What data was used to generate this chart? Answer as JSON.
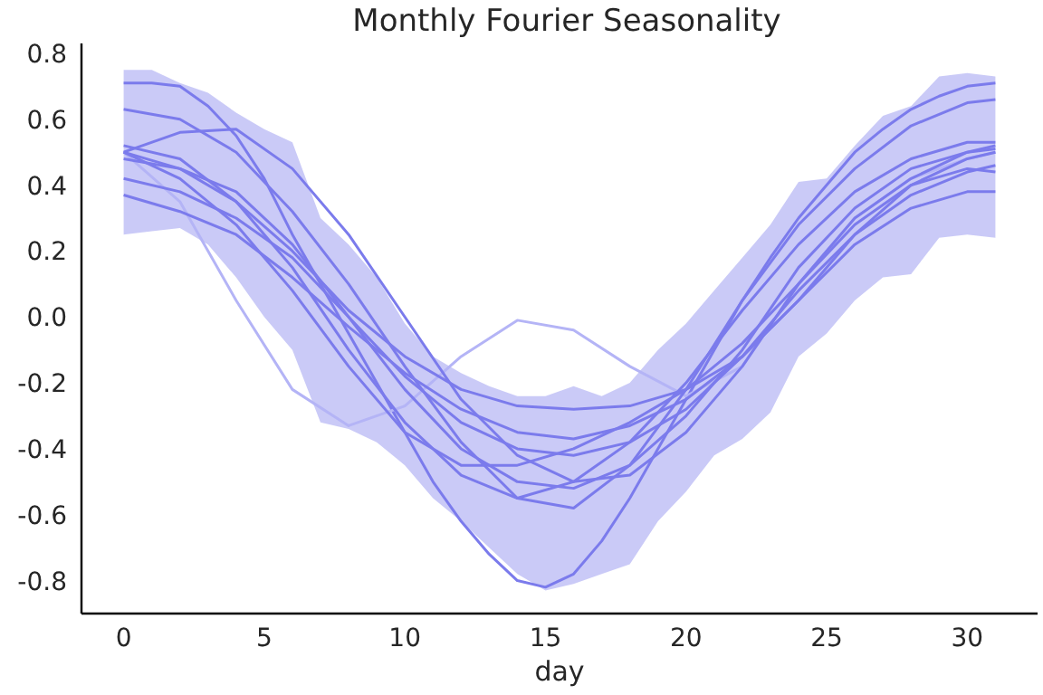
{
  "chart_data": {
    "type": "line",
    "title": "Monthly Fourier Seasonality",
    "xlabel": "day",
    "xlim": [
      -1.5,
      32.5
    ],
    "xticks": [
      0,
      5,
      10,
      15,
      20,
      25,
      30
    ],
    "ylim": [
      -0.9,
      0.83
    ],
    "yticks": [
      -0.8,
      -0.6,
      -0.4,
      -0.2,
      {
        "value": 0,
        "label": "0.0"
      },
      0.2,
      0.4,
      0.6,
      0.8
    ],
    "grid": false,
    "marker": "none",
    "line_style": "solid",
    "series": [
      {
        "color": "#7b7bec",
        "x": [
          0,
          1,
          2,
          3,
          4,
          5,
          6,
          7,
          8,
          9,
          10,
          11,
          12,
          13,
          14,
          15,
          16,
          17,
          18,
          19,
          20,
          21,
          22,
          23,
          24,
          25,
          26,
          27,
          28,
          29,
          30,
          31
        ],
        "values": [
          0.71,
          0.71,
          0.7,
          0.64,
          0.55,
          0.42,
          0.25,
          0.1,
          -0.05,
          -0.2,
          -0.35,
          -0.5,
          -0.62,
          -0.72,
          -0.8,
          -0.82,
          -0.78,
          -0.68,
          -0.55,
          -0.4,
          -0.25,
          -0.1,
          0.05,
          0.18,
          0.3,
          0.4,
          0.5,
          0.57,
          0.63,
          0.67,
          0.7,
          0.71
        ],
        "lower": [
          0.25,
          0.26,
          0.27,
          0.22,
          0.12,
          0.0,
          -0.1,
          -0.32,
          -0.34,
          -0.38,
          -0.45,
          -0.55,
          -0.62,
          -0.7,
          -0.78,
          -0.83,
          -0.81,
          -0.78,
          -0.75,
          -0.62,
          -0.53,
          -0.42,
          -0.37,
          -0.29,
          -0.12,
          -0.05,
          0.05,
          0.12,
          0.13,
          0.24,
          0.25,
          0.24
        ],
        "upper": [
          0.75,
          0.75,
          0.71,
          0.68,
          0.62,
          0.57,
          0.53,
          0.3,
          0.22,
          0.12,
          -0.02,
          -0.12,
          -0.17,
          -0.21,
          -0.24,
          -0.24,
          -0.21,
          -0.24,
          -0.2,
          -0.1,
          -0.02,
          0.08,
          0.18,
          0.28,
          0.41,
          0.42,
          0.52,
          0.61,
          0.64,
          0.73,
          0.74,
          0.73
        ]
      },
      {
        "color": "#b4b4f6",
        "x": [
          0,
          2,
          4,
          6,
          8,
          10,
          12,
          14,
          16,
          18,
          20,
          22,
          24,
          26,
          28,
          30,
          31
        ],
        "values": [
          0.5,
          0.35,
          0.05,
          -0.22,
          -0.33,
          -0.27,
          -0.12,
          -0.01,
          -0.04,
          -0.15,
          -0.24,
          -0.15,
          0.1,
          0.3,
          0.42,
          0.48,
          0.5
        ]
      },
      {
        "color": "#7b7bec",
        "x": [
          0,
          2,
          4,
          6,
          8,
          10,
          12,
          14,
          16,
          18,
          20,
          22,
          24,
          26,
          28,
          30,
          31
        ],
        "values": [
          0.63,
          0.6,
          0.5,
          0.32,
          0.1,
          -0.15,
          -0.38,
          -0.55,
          -0.58,
          -0.45,
          -0.22,
          0.05,
          0.28,
          0.45,
          0.58,
          0.65,
          0.66
        ]
      },
      {
        "color": "#7b7bec",
        "x": [
          0,
          2,
          4,
          6,
          8,
          10,
          12,
          14,
          16,
          18,
          20,
          22,
          24,
          26,
          28,
          30,
          31
        ],
        "values": [
          0.5,
          0.56,
          0.57,
          0.45,
          0.25,
          0.0,
          -0.25,
          -0.42,
          -0.5,
          -0.48,
          -0.35,
          -0.15,
          0.1,
          0.3,
          0.42,
          0.5,
          0.52
        ]
      },
      {
        "color": "#7b7bec",
        "x": [
          0,
          2,
          4,
          6,
          8,
          10,
          12,
          14,
          16,
          18,
          20,
          22,
          24,
          26,
          28,
          30,
          31
        ],
        "values": [
          0.52,
          0.48,
          0.35,
          0.15,
          -0.1,
          -0.32,
          -0.48,
          -0.55,
          -0.5,
          -0.38,
          -0.2,
          0.02,
          0.22,
          0.38,
          0.48,
          0.53,
          0.53
        ]
      },
      {
        "color": "#7b7bec",
        "x": [
          0,
          2,
          4,
          6,
          8,
          10,
          12,
          14,
          16,
          18,
          20,
          22,
          24,
          26,
          28,
          30,
          31
        ],
        "values": [
          0.48,
          0.45,
          0.38,
          0.22,
          0.0,
          -0.22,
          -0.4,
          -0.5,
          -0.52,
          -0.45,
          -0.3,
          -0.1,
          0.15,
          0.33,
          0.45,
          0.5,
          0.51
        ]
      },
      {
        "color": "#7b7bec",
        "x": [
          0,
          2,
          4,
          6,
          8,
          10,
          12,
          14,
          16,
          18,
          20,
          22,
          24,
          26,
          28,
          30,
          31
        ],
        "values": [
          0.42,
          0.38,
          0.3,
          0.18,
          0.0,
          -0.18,
          -0.32,
          -0.4,
          -0.42,
          -0.38,
          -0.28,
          -0.12,
          0.08,
          0.25,
          0.37,
          0.44,
          0.46
        ]
      },
      {
        "color": "#7b7bec",
        "x": [
          0,
          2,
          4,
          6,
          8,
          10,
          12,
          14,
          16,
          18,
          20,
          22,
          24,
          26,
          28,
          30,
          31
        ],
        "values": [
          0.37,
          0.32,
          0.25,
          0.12,
          -0.03,
          -0.17,
          -0.28,
          -0.35,
          -0.37,
          -0.33,
          -0.25,
          -0.12,
          0.05,
          0.22,
          0.33,
          0.38,
          0.38
        ]
      },
      {
        "color": "#7b7bec",
        "x": [
          0,
          2,
          4,
          6,
          8,
          10,
          12,
          14,
          16,
          18,
          20,
          22,
          24,
          26,
          28,
          30,
          31
        ],
        "values": [
          0.5,
          0.45,
          0.35,
          0.2,
          0.02,
          -0.12,
          -0.22,
          -0.27,
          -0.28,
          -0.27,
          -0.22,
          -0.12,
          0.05,
          0.25,
          0.4,
          0.45,
          0.44
        ]
      },
      {
        "color": "#7b7bec",
        "x": [
          0,
          2,
          4,
          6,
          8,
          10,
          12,
          14,
          16,
          18,
          20,
          22,
          24,
          26,
          28,
          30,
          31
        ],
        "values": [
          0.5,
          0.42,
          0.28,
          0.08,
          -0.15,
          -0.35,
          -0.45,
          -0.45,
          -0.4,
          -0.32,
          -0.22,
          -0.08,
          0.1,
          0.28,
          0.4,
          0.48,
          0.5
        ]
      }
    ]
  }
}
